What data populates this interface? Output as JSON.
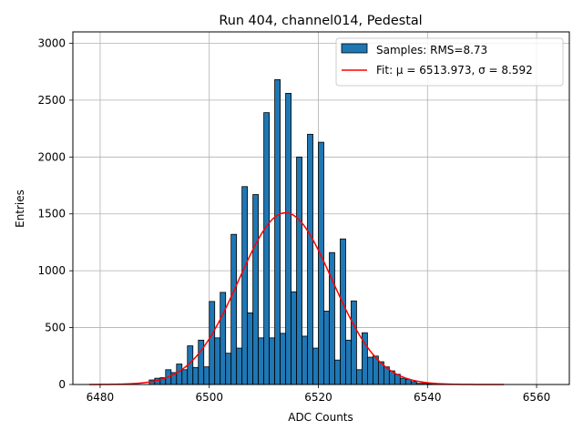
{
  "chart_data": {
    "type": "bar",
    "title": "Run 404, channel014, Pedestal",
    "xlabel": "ADC Counts",
    "ylabel": "Entries",
    "xlim": [
      6475,
      6566
    ],
    "ylim": [
      0,
      3100
    ],
    "grid": true,
    "legend_position": "top-right",
    "xticks": [
      6480,
      6500,
      6520,
      6540,
      6560
    ],
    "yticks": [
      0,
      500,
      1000,
      1500,
      2000,
      2500,
      3000
    ],
    "bin_width": 1,
    "bin_start": 6489,
    "counts": [
      40,
      55,
      60,
      130,
      105,
      180,
      130,
      340,
      150,
      390,
      155,
      730,
      410,
      810,
      275,
      1320,
      320,
      1740,
      630,
      1670,
      410,
      2390,
      410,
      2680,
      450,
      2560,
      815,
      2000,
      425,
      2200,
      320,
      2130,
      645,
      1160,
      215,
      1280,
      390,
      735,
      130,
      455,
      240,
      250,
      200,
      155,
      120,
      90,
      55,
      45,
      25,
      10,
      10,
      5
    ],
    "bar_color": "#1f77b4",
    "series": [
      {
        "name": "Samples: RMS=8.73",
        "kind": "histogram",
        "color": "#1f77b4"
      },
      {
        "name": "Fit: μ = 6513.973, σ = 8.592",
        "kind": "gaussian",
        "mu": 6513.973,
        "sigma": 8.592,
        "amplitude": 1510,
        "x_range": [
          6478,
          6554
        ],
        "color": "#ff0000"
      }
    ]
  }
}
